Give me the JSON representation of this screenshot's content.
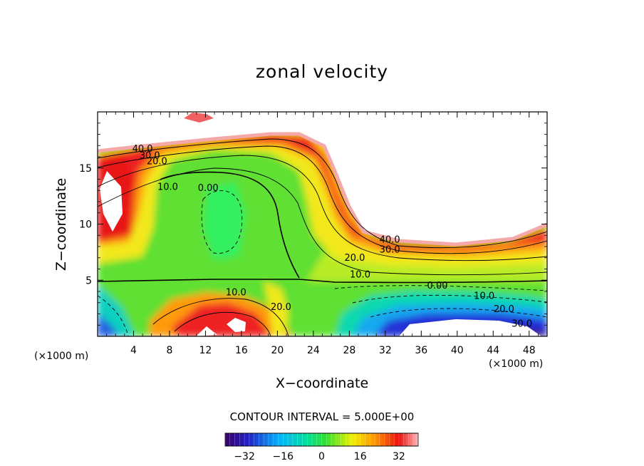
{
  "chart_data": {
    "type": "contour",
    "title": "zonal velocity",
    "xlabel": "X−coordinate",
    "ylabel": "Z−coordinate",
    "x_unit_left": "(×1000 m)",
    "x_unit_right": "(×1000 m)",
    "xlim": [
      0,
      50
    ],
    "ylim": [
      0,
      20
    ],
    "x_ticks": [
      4,
      8,
      12,
      16,
      20,
      24,
      28,
      32,
      36,
      40,
      44,
      48
    ],
    "y_ticks": [
      5,
      10,
      15
    ],
    "contour_interval_label": "CONTOUR INTERVAL = 5.000E+00",
    "contour_labels": [
      {
        "text": "40.0",
        "x": 5.0,
        "y": 16.7
      },
      {
        "text": "30.0",
        "x": 5.8,
        "y": 16.1
      },
      {
        "text": "20.0",
        "x": 6.6,
        "y": 15.6
      },
      {
        "text": "10.0",
        "x": 7.8,
        "y": 13.3
      },
      {
        "text": "0.00",
        "x": 12.3,
        "y": 13.2
      },
      {
        "text": "10.0",
        "x": 15.4,
        "y": 3.9
      },
      {
        "text": "20.0",
        "x": 20.4,
        "y": 2.6
      },
      {
        "text": "10.0",
        "x": 29.2,
        "y": 5.5
      },
      {
        "text": "20.0",
        "x": 28.6,
        "y": 7.0
      },
      {
        "text": "30.0",
        "x": 32.5,
        "y": 7.7
      },
      {
        "text": "40.0",
        "x": 32.5,
        "y": 8.6
      },
      {
        "text": "0.00",
        "x": 37.8,
        "y": 4.5
      },
      {
        "text": "10.0",
        "x": 43.0,
        "y": 3.6
      },
      {
        "text": "20.0",
        "x": 45.2,
        "y": 2.4
      },
      {
        "text": "30.0",
        "x": 47.2,
        "y": 1.1
      }
    ],
    "colorbar": {
      "min": -40,
      "max": 40,
      "ticks": [
        -32,
        -16,
        0,
        16,
        32
      ]
    }
  }
}
